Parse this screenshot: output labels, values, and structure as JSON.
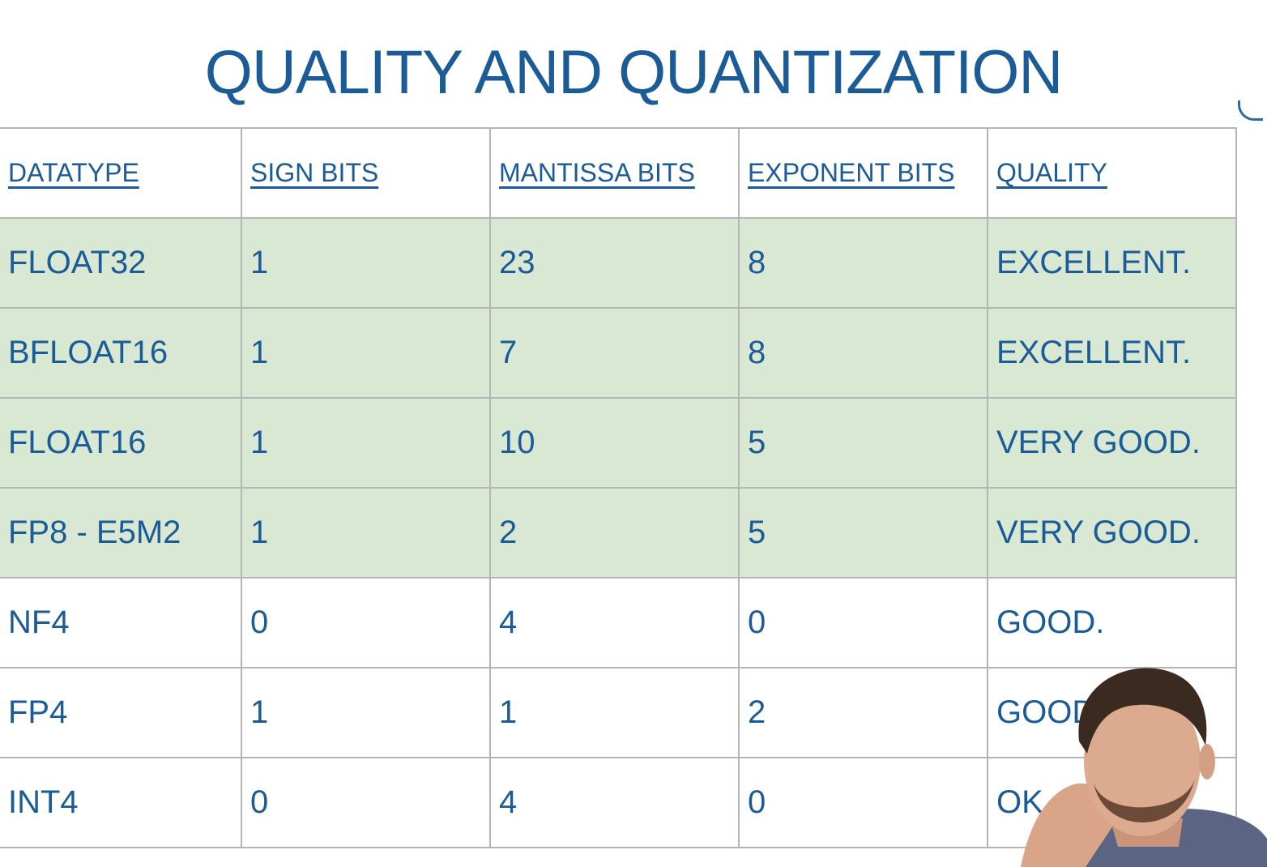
{
  "slide": {
    "title": "QUALITY AND QUANTIZATION",
    "table": {
      "headers": [
        "DATATYPE",
        "SIGN BITS",
        "MANTISSA BITS",
        "EXPONENT BITS",
        "QUALITY"
      ],
      "rows": [
        {
          "cells": [
            "FLOAT32",
            "1",
            "23",
            "8",
            "EXCELLENT."
          ],
          "highlighted": true
        },
        {
          "cells": [
            "BFLOAT16",
            "1",
            "7",
            "8",
            "EXCELLENT."
          ],
          "highlighted": true
        },
        {
          "cells": [
            "FLOAT16",
            "1",
            "10",
            "5",
            "VERY GOOD."
          ],
          "highlighted": true
        },
        {
          "cells": [
            "FP8 - E5M2",
            "1",
            "2",
            "5",
            "VERY GOOD."
          ],
          "highlighted": true
        },
        {
          "cells": [
            "NF4",
            "0",
            "4",
            "0",
            "GOOD."
          ],
          "highlighted": false
        },
        {
          "cells": [
            "FP4",
            "1",
            "1",
            "2",
            "GOOD."
          ],
          "highlighted": false
        },
        {
          "cells": [
            "INT4",
            "0",
            "4",
            "0",
            "OK"
          ],
          "highlighted": false
        }
      ]
    },
    "colors": {
      "text": "#1b5b97",
      "highlight_row": "#d9e8d3",
      "grid": "#b5b5b5"
    }
  },
  "webcam": {
    "icon": "presenter-webcam-overlay"
  }
}
